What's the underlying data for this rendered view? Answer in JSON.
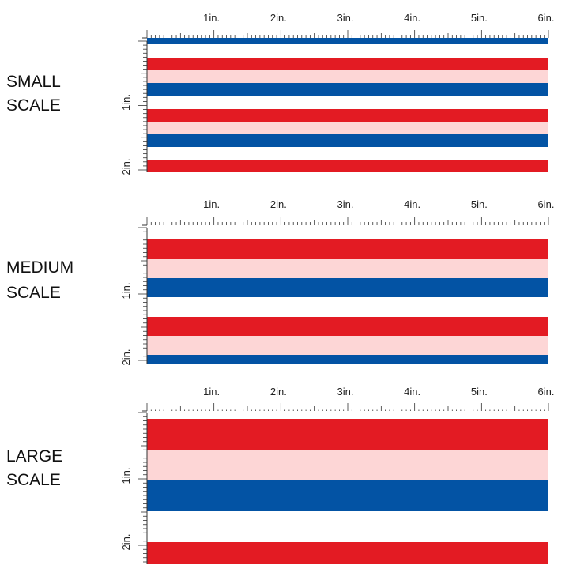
{
  "sections": [
    {
      "label": "SMALL SCALE"
    },
    {
      "label": "MEDIUM SCALE"
    },
    {
      "label": "LARGE SCALE"
    }
  ],
  "ruler": {
    "x_labels": [
      "1in.",
      "2in.",
      "3in.",
      "4in.",
      "5in.",
      "6in."
    ],
    "y_labels": [
      "1in.",
      "2in."
    ]
  }
}
